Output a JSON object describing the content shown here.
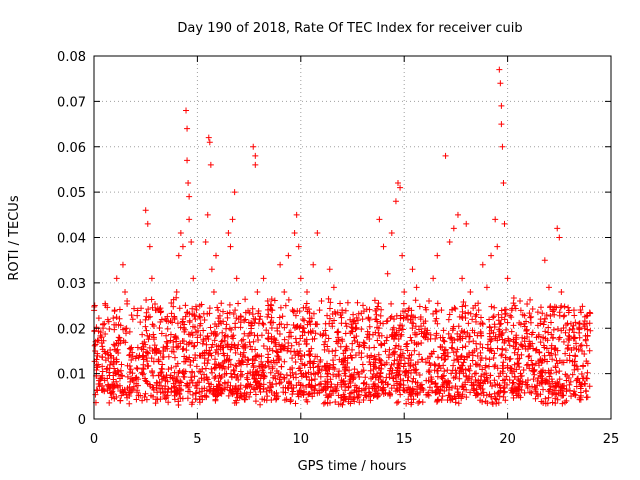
{
  "chart_data": {
    "type": "scatter",
    "title": "Day 190 of 2018, Rate Of TEC Index for receiver cuib",
    "xlabel": "GPS time / hours",
    "ylabel": "ROTI / TECUs",
    "xlim": [
      0,
      25
    ],
    "ylim": [
      0,
      0.08
    ],
    "x_ticks": [
      0,
      5,
      10,
      15,
      20,
      25
    ],
    "x_tick_labels": [
      "0",
      "5",
      "10",
      "15",
      "20",
      "25"
    ],
    "y_ticks": [
      0,
      0.01,
      0.02,
      0.03,
      0.04,
      0.05,
      0.06,
      0.07,
      0.08
    ],
    "y_tick_labels": [
      "0",
      "0.01",
      "0.02",
      "0.03",
      "0.04",
      "0.05",
      "0.06",
      "0.07",
      "0.08"
    ],
    "grid": true,
    "marker": "+",
    "color": "#ff0000",
    "series": [
      {
        "name": "ROTI",
        "points": [
          [
            0.2,
            0.012
          ],
          [
            0.3,
            0.009
          ],
          [
            0.4,
            0.016
          ],
          [
            0.5,
            0.021
          ],
          [
            0.6,
            0.011
          ],
          [
            0.8,
            0.014
          ],
          [
            1.0,
            0.024
          ],
          [
            1.1,
            0.031
          ],
          [
            1.2,
            0.018
          ],
          [
            1.4,
            0.034
          ],
          [
            1.5,
            0.028
          ],
          [
            1.6,
            0.026
          ],
          [
            1.8,
            0.013
          ],
          [
            2.0,
            0.009
          ],
          [
            2.2,
            0.014
          ],
          [
            2.4,
            0.011
          ],
          [
            2.5,
            0.046
          ],
          [
            2.6,
            0.043
          ],
          [
            2.7,
            0.038
          ],
          [
            2.8,
            0.031
          ],
          [
            2.9,
            0.018
          ],
          [
            3.0,
            0.024
          ],
          [
            3.1,
            0.015
          ],
          [
            3.3,
            0.012
          ],
          [
            3.5,
            0.016
          ],
          [
            3.6,
            0.011
          ],
          [
            3.8,
            0.009
          ],
          [
            3.9,
            0.022
          ],
          [
            4.0,
            0.028
          ],
          [
            4.1,
            0.036
          ],
          [
            4.2,
            0.041
          ],
          [
            4.3,
            0.038
          ],
          [
            4.45,
            0.068
          ],
          [
            4.5,
            0.064
          ],
          [
            4.5,
            0.057
          ],
          [
            4.55,
            0.052
          ],
          [
            4.6,
            0.049
          ],
          [
            4.6,
            0.044
          ],
          [
            4.7,
            0.039
          ],
          [
            4.8,
            0.031
          ],
          [
            4.9,
            0.022
          ],
          [
            5.0,
            0.018
          ],
          [
            5.1,
            0.014
          ],
          [
            5.2,
            0.009
          ],
          [
            5.4,
            0.039
          ],
          [
            5.5,
            0.045
          ],
          [
            5.55,
            0.062
          ],
          [
            5.6,
            0.061
          ],
          [
            5.65,
            0.056
          ],
          [
            5.7,
            0.033
          ],
          [
            5.8,
            0.028
          ],
          [
            5.9,
            0.036
          ],
          [
            6.0,
            0.024
          ],
          [
            6.2,
            0.019
          ],
          [
            6.3,
            0.014
          ],
          [
            6.5,
            0.041
          ],
          [
            6.6,
            0.038
          ],
          [
            6.7,
            0.044
          ],
          [
            6.8,
            0.05
          ],
          [
            6.9,
            0.031
          ],
          [
            7.0,
            0.022
          ],
          [
            7.2,
            0.016
          ],
          [
            7.4,
            0.012
          ],
          [
            7.6,
            0.019
          ],
          [
            7.7,
            0.06
          ],
          [
            7.8,
            0.058
          ],
          [
            7.8,
            0.056
          ],
          [
            7.9,
            0.028
          ],
          [
            8.0,
            0.022
          ],
          [
            8.2,
            0.031
          ],
          [
            8.4,
            0.026
          ],
          [
            8.6,
            0.024
          ],
          [
            8.8,
            0.016
          ],
          [
            9.0,
            0.034
          ],
          [
            9.2,
            0.028
          ],
          [
            9.4,
            0.036
          ],
          [
            9.6,
            0.024
          ],
          [
            9.7,
            0.041
          ],
          [
            9.8,
            0.045
          ],
          [
            9.9,
            0.038
          ],
          [
            10.0,
            0.031
          ],
          [
            10.1,
            0.022
          ],
          [
            10.3,
            0.028
          ],
          [
            10.5,
            0.019
          ],
          [
            10.6,
            0.034
          ],
          [
            10.8,
            0.041
          ],
          [
            11.0,
            0.026
          ],
          [
            11.2,
            0.021
          ],
          [
            11.4,
            0.033
          ],
          [
            11.6,
            0.029
          ],
          [
            11.8,
            0.018
          ],
          [
            12.0,
            0.024
          ],
          [
            12.2,
            0.016
          ],
          [
            12.4,
            0.014
          ],
          [
            12.6,
            0.011
          ],
          [
            12.8,
            0.006
          ],
          [
            13.0,
            0.012
          ],
          [
            13.2,
            0.018
          ],
          [
            13.4,
            0.014
          ],
          [
            13.6,
            0.022
          ],
          [
            13.8,
            0.044
          ],
          [
            14.0,
            0.038
          ],
          [
            14.2,
            0.032
          ],
          [
            14.4,
            0.041
          ],
          [
            14.6,
            0.048
          ],
          [
            14.7,
            0.052
          ],
          [
            14.8,
            0.051
          ],
          [
            14.9,
            0.036
          ],
          [
            15.0,
            0.028
          ],
          [
            15.2,
            0.024
          ],
          [
            15.4,
            0.033
          ],
          [
            15.6,
            0.029
          ],
          [
            15.8,
            0.022
          ],
          [
            16.0,
            0.018
          ],
          [
            16.2,
            0.026
          ],
          [
            16.4,
            0.031
          ],
          [
            16.6,
            0.036
          ],
          [
            16.8,
            0.024
          ],
          [
            17.0,
            0.058
          ],
          [
            17.2,
            0.039
          ],
          [
            17.4,
            0.042
          ],
          [
            17.6,
            0.045
          ],
          [
            17.8,
            0.031
          ],
          [
            18.0,
            0.043
          ],
          [
            18.2,
            0.028
          ],
          [
            18.4,
            0.019
          ],
          [
            18.6,
            0.024
          ],
          [
            18.8,
            0.034
          ],
          [
            19.0,
            0.029
          ],
          [
            19.2,
            0.036
          ],
          [
            19.4,
            0.044
          ],
          [
            19.5,
            0.038
          ],
          [
            19.6,
            0.077
          ],
          [
            19.65,
            0.074
          ],
          [
            19.7,
            0.069
          ],
          [
            19.7,
            0.065
          ],
          [
            19.75,
            0.06
          ],
          [
            19.8,
            0.052
          ],
          [
            19.85,
            0.043
          ],
          [
            20.0,
            0.031
          ],
          [
            20.2,
            0.024
          ],
          [
            20.4,
            0.018
          ],
          [
            20.6,
            0.026
          ],
          [
            20.8,
            0.021
          ],
          [
            21.0,
            0.016
          ],
          [
            21.2,
            0.012
          ],
          [
            21.4,
            0.018
          ],
          [
            21.6,
            0.022
          ],
          [
            21.8,
            0.035
          ],
          [
            22.0,
            0.029
          ],
          [
            22.2,
            0.024
          ],
          [
            22.4,
            0.042
          ],
          [
            22.5,
            0.04
          ],
          [
            22.6,
            0.028
          ],
          [
            22.8,
            0.019
          ],
          [
            23.0,
            0.014
          ],
          [
            23.2,
            0.018
          ],
          [
            23.4,
            0.011
          ],
          [
            23.6,
            0.015
          ],
          [
            23.8,
            0.009
          ]
        ],
        "baseline_band": {
          "hours_range": [
            0,
            24
          ],
          "typical_low": 0.005,
          "typical_high": 0.025
        }
      }
    ]
  }
}
